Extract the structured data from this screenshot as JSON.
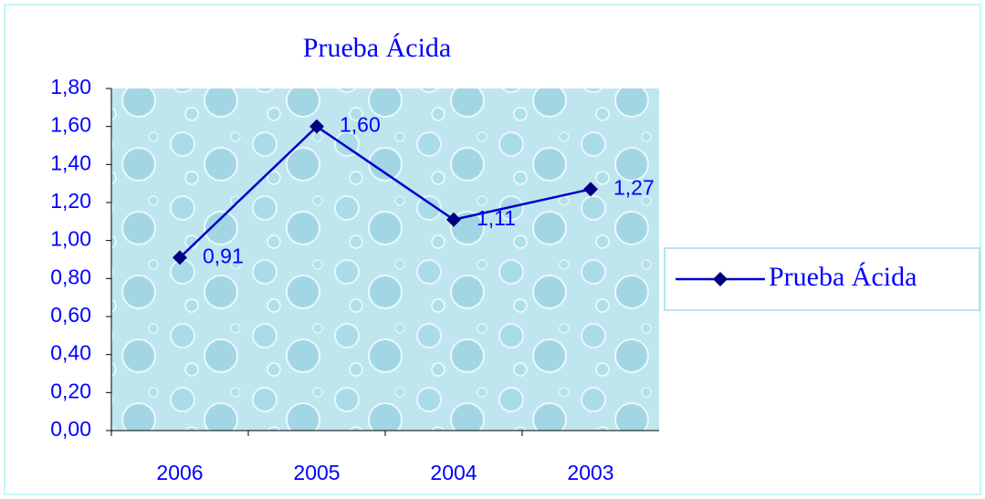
{
  "chart_data": {
    "type": "line",
    "title": "Prueba Ácida",
    "categories": [
      "2006",
      "2005",
      "2004",
      "2003"
    ],
    "series": [
      {
        "name": "Prueba Ácida",
        "color": "#0000cc",
        "marker_color": "#000080",
        "values": [
          0.91,
          1.6,
          1.11,
          1.27
        ],
        "value_labels": [
          "0,91",
          "1,60",
          "1,11",
          "1,27"
        ]
      }
    ],
    "ylim": [
      0,
      1.8
    ],
    "yticks": [
      {
        "value": 0,
        "label": "0,00"
      },
      {
        "value": 0.2,
        "label": "0,20"
      },
      {
        "value": 0.4,
        "label": "0,40"
      },
      {
        "value": 0.6,
        "label": "0,60"
      },
      {
        "value": 0.8,
        "label": "0,80"
      },
      {
        "value": 1.0,
        "label": "1,00"
      },
      {
        "value": 1.2,
        "label": "1,20"
      },
      {
        "value": 1.4,
        "label": "1,40"
      },
      {
        "value": 1.6,
        "label": "1,60"
      },
      {
        "value": 1.8,
        "label": "1,80"
      }
    ],
    "legend": "right"
  }
}
